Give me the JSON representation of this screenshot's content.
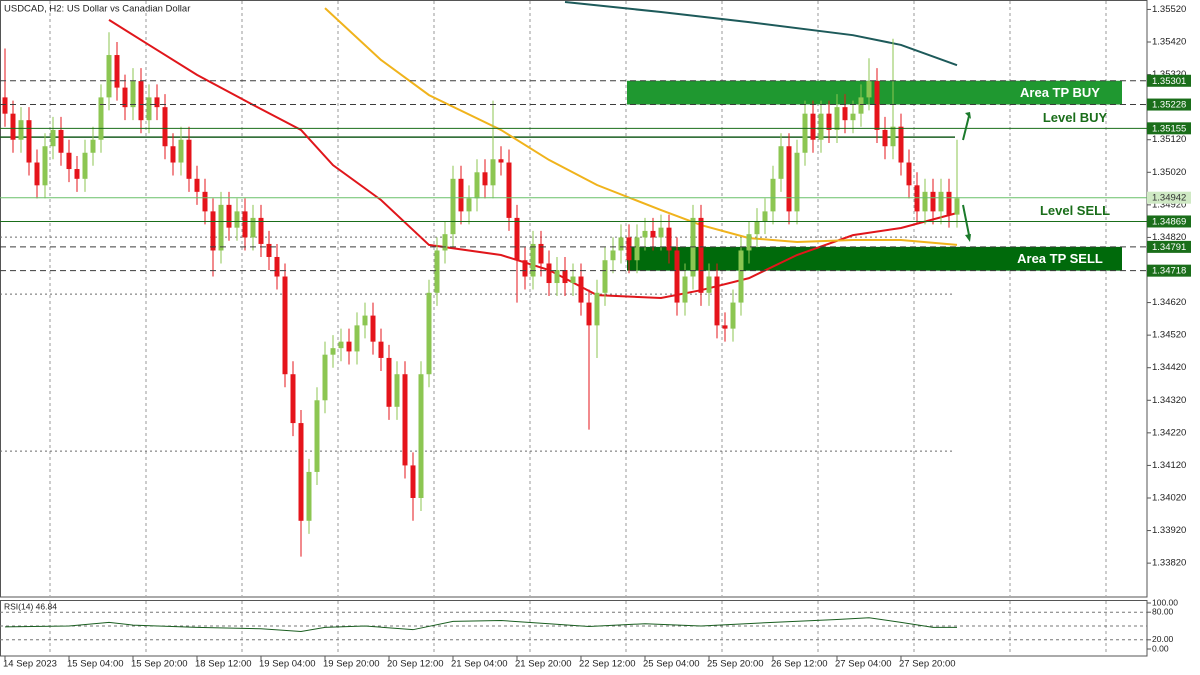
{
  "chart_data": [
    {
      "type": "candlestick",
      "title": "USDCAD, H2: US Dollar vs Canadian Dollar",
      "categories": [
        "14 Sep 2023",
        null,
        null,
        null,
        null,
        null,
        null,
        null,
        "15 Sep 04:00",
        null,
        null,
        null,
        null,
        null,
        null,
        null,
        "15 Sep 20:00",
        null,
        null,
        null,
        null,
        null,
        null,
        null,
        "18 Sep 12:00",
        null,
        null,
        null,
        null,
        null,
        null,
        null,
        "19 Sep 04:00",
        null,
        null,
        null,
        null,
        null,
        null,
        null,
        "19 Sep 20:00",
        null,
        null,
        null,
        null,
        null,
        null,
        null,
        "20 Sep 12:00",
        null,
        null,
        null,
        null,
        null,
        null,
        null,
        "21 Sep 04:00",
        null,
        null,
        null,
        null,
        null,
        null,
        null,
        "21 Sep 20:00",
        null,
        null,
        null,
        null,
        null,
        null,
        null,
        "22 Sep 12:00",
        null,
        null,
        null,
        null,
        null,
        null,
        null,
        "25 Sep 04:00",
        null,
        null,
        null,
        null,
        null,
        null,
        null,
        "25 Sep 20:00",
        null,
        null,
        null,
        null,
        null,
        null,
        null,
        "26 Sep 12:00",
        null,
        null,
        null,
        null,
        null,
        null,
        null,
        "27 Sep 04:00",
        null,
        null,
        null,
        null,
        null,
        null,
        null,
        "27 Sep 20:00",
        null,
        null,
        null,
        null,
        null,
        null,
        null
      ],
      "open": [
        1.3525,
        1.352,
        1.3512,
        1.3518,
        1.3505,
        1.3498,
        1.351,
        1.3515,
        1.3508,
        1.3503,
        1.35,
        1.3508,
        1.3512,
        1.3525,
        1.3538,
        1.3528,
        1.3522,
        1.353,
        1.3518,
        1.3525,
        1.3522,
        1.351,
        1.3505,
        1.3512,
        1.35,
        1.3496,
        1.349,
        1.3478,
        1.3492,
        1.3485,
        1.349,
        1.3482,
        1.3488,
        1.348,
        1.3476,
        1.347,
        1.344,
        1.3425,
        1.3395,
        1.341,
        1.3432,
        1.3446,
        1.3448,
        1.345,
        1.3447,
        1.3455,
        1.3458,
        1.345,
        1.3445,
        1.343,
        1.344,
        1.3412,
        1.3402,
        1.344,
        1.3465,
        1.3478,
        1.3483,
        1.35,
        1.349,
        1.3494,
        1.3502,
        1.3498,
        1.3506,
        1.3505,
        1.3488,
        1.3475,
        1.347,
        1.348,
        1.3474,
        1.3468,
        1.3472,
        1.3468,
        1.347,
        1.3462,
        1.3455,
        1.3465,
        1.3475,
        1.3478,
        1.3482,
        1.3475,
        1.3482,
        1.3484,
        1.3482,
        1.3485,
        1.3478,
        1.3462,
        1.347,
        1.3488,
        1.3465,
        1.347,
        1.3455,
        1.3454,
        1.3462,
        1.3478,
        1.3483,
        1.3487,
        1.349,
        1.35,
        1.351,
        1.349,
        1.3508,
        1.352,
        1.3512,
        1.352,
        1.3515,
        1.3522,
        1.3518,
        1.352,
        1.3525,
        1.353,
        1.3515,
        1.351,
        1.3516,
        1.3505,
        1.3498,
        1.349,
        1.3496,
        1.349,
        1.3496,
        1.3489
      ],
      "high": [
        1.354,
        1.3524,
        1.3522,
        1.3522,
        1.3509,
        1.3514,
        1.3519,
        1.3519,
        1.3512,
        1.3507,
        1.3512,
        1.3516,
        1.3529,
        1.3545,
        1.3542,
        1.3532,
        1.3534,
        1.3534,
        1.3529,
        1.3529,
        1.3526,
        1.3514,
        1.3516,
        1.3516,
        1.3504,
        1.35,
        1.3494,
        1.3496,
        1.3496,
        1.3494,
        1.3494,
        1.3492,
        1.3492,
        1.3484,
        1.348,
        1.3474,
        1.3444,
        1.3429,
        1.3414,
        1.3436,
        1.345,
        1.3452,
        1.3454,
        1.3454,
        1.3459,
        1.3462,
        1.3462,
        1.3454,
        1.3449,
        1.3444,
        1.3444,
        1.3416,
        1.3444,
        1.3469,
        1.3482,
        1.3487,
        1.3504,
        1.3504,
        1.3498,
        1.3506,
        1.3506,
        1.3524,
        1.351,
        1.3509,
        1.3492,
        1.3479,
        1.3484,
        1.3484,
        1.3478,
        1.3476,
        1.3476,
        1.3474,
        1.3474,
        1.3466,
        1.3469,
        1.3479,
        1.3482,
        1.3486,
        1.3486,
        1.3486,
        1.3488,
        1.3488,
        1.3489,
        1.3489,
        1.3482,
        1.3474,
        1.3492,
        1.3492,
        1.3474,
        1.3474,
        1.3459,
        1.3466,
        1.3482,
        1.3487,
        1.3491,
        1.3494,
        1.3504,
        1.3514,
        1.3514,
        1.3512,
        1.3524,
        1.3524,
        1.3524,
        1.3524,
        1.3526,
        1.3526,
        1.3524,
        1.3529,
        1.3537,
        1.3534,
        1.3519,
        1.3543,
        1.352,
        1.3509,
        1.3502,
        1.35,
        1.35,
        1.35,
        1.35,
        1.3512
      ],
      "low": [
        1.3516,
        1.3508,
        1.3508,
        1.3501,
        1.3494,
        1.3494,
        1.3506,
        1.3504,
        1.3499,
        1.3496,
        1.3496,
        1.3504,
        1.3508,
        1.3521,
        1.3524,
        1.3518,
        1.3518,
        1.3514,
        1.3514,
        1.3518,
        1.3506,
        1.3501,
        1.3501,
        1.3496,
        1.3492,
        1.3486,
        1.347,
        1.3474,
        1.3481,
        1.3481,
        1.3478,
        1.3478,
        1.3476,
        1.3472,
        1.3466,
        1.3436,
        1.3421,
        1.3384,
        1.3391,
        1.3406,
        1.3428,
        1.3442,
        1.3444,
        1.3443,
        1.3443,
        1.3451,
        1.3446,
        1.3441,
        1.3426,
        1.3426,
        1.3408,
        1.3395,
        1.3398,
        1.3436,
        1.3461,
        1.3474,
        1.3479,
        1.3486,
        1.3486,
        1.349,
        1.3494,
        1.3494,
        1.3501,
        1.3484,
        1.3462,
        1.3466,
        1.3466,
        1.347,
        1.3464,
        1.3464,
        1.3464,
        1.3464,
        1.3458,
        1.3423,
        1.3445,
        1.3461,
        1.3471,
        1.3474,
        1.3471,
        1.3471,
        1.3478,
        1.3478,
        1.3478,
        1.3474,
        1.3458,
        1.3458,
        1.3466,
        1.3461,
        1.3461,
        1.3451,
        1.345,
        1.345,
        1.3458,
        1.3474,
        1.3479,
        1.3483,
        1.3486,
        1.3496,
        1.3486,
        1.3486,
        1.3504,
        1.3508,
        1.3508,
        1.3511,
        1.3511,
        1.3514,
        1.3514,
        1.3516,
        1.3521,
        1.3511,
        1.3506,
        1.3506,
        1.3501,
        1.3494,
        1.3486,
        1.3486,
        1.3486,
        1.3486,
        1.3485,
        1.3485
      ],
      "close": [
        1.352,
        1.3512,
        1.3518,
        1.3505,
        1.3498,
        1.351,
        1.3515,
        1.3508,
        1.3503,
        1.35,
        1.3508,
        1.3512,
        1.3525,
        1.3538,
        1.3528,
        1.3522,
        1.353,
        1.3518,
        1.3525,
        1.3522,
        1.351,
        1.3505,
        1.3512,
        1.35,
        1.3496,
        1.349,
        1.3478,
        1.3492,
        1.3485,
        1.349,
        1.3482,
        1.3488,
        1.348,
        1.3476,
        1.347,
        1.344,
        1.3425,
        1.3395,
        1.341,
        1.3432,
        1.3446,
        1.3448,
        1.345,
        1.3447,
        1.3455,
        1.3458,
        1.345,
        1.3445,
        1.343,
        1.344,
        1.3412,
        1.3402,
        1.344,
        1.3465,
        1.3478,
        1.3483,
        1.35,
        1.349,
        1.3494,
        1.3502,
        1.3498,
        1.3506,
        1.3505,
        1.3488,
        1.3475,
        1.347,
        1.348,
        1.3474,
        1.3468,
        1.3472,
        1.3468,
        1.347,
        1.3462,
        1.3455,
        1.3465,
        1.3475,
        1.3478,
        1.3482,
        1.3475,
        1.3482,
        1.3484,
        1.3482,
        1.3485,
        1.3478,
        1.3462,
        1.347,
        1.3488,
        1.3465,
        1.347,
        1.3455,
        1.3454,
        1.3462,
        1.3478,
        1.3483,
        1.3487,
        1.349,
        1.35,
        1.351,
        1.349,
        1.3508,
        1.352,
        1.3512,
        1.352,
        1.3515,
        1.3522,
        1.3518,
        1.352,
        1.3525,
        1.353,
        1.3515,
        1.351,
        1.3516,
        1.3505,
        1.3498,
        1.349,
        1.3496,
        1.349,
        1.3496,
        1.3489,
        1.3494
      ],
      "up_color": "#8cc652",
      "down_color": "#e5141b",
      "ylim": [
        1.33716,
        1.35549
      ],
      "yticks": [
        {
          "value": 1.3382,
          "label": "1.33820"
        },
        {
          "value": 1.3392,
          "label": "1.33920"
        },
        {
          "value": 1.3402,
          "label": "1.34020"
        },
        {
          "value": 1.3412,
          "label": "1.34120"
        },
        {
          "value": 1.3422,
          "label": "1.34220"
        },
        {
          "value": 1.3432,
          "label": "1.34320"
        },
        {
          "value": 1.3442,
          "label": "1.34420"
        },
        {
          "value": 1.3452,
          "label": "1.34520"
        },
        {
          "value": 1.3462,
          "label": "1.34620"
        },
        {
          "value": 1.3472,
          "label": "1.34720"
        },
        {
          "value": 1.3482,
          "label": "1.34820"
        },
        {
          "value": 1.3492,
          "label": "1.34920"
        },
        {
          "value": 1.3502,
          "label": "1.35020"
        },
        {
          "value": 1.3512,
          "label": "1.35120"
        },
        {
          "value": 1.3522,
          "label": "1.35220"
        },
        {
          "value": 1.3532,
          "label": "1.35320"
        },
        {
          "value": 1.3542,
          "label": "1.35420"
        },
        {
          "value": 1.3552,
          "label": "1.35520"
        }
      ],
      "grid": true,
      "series": [
        {
          "color": "#e0161b",
          "x": [
            13,
            18,
            24,
            31,
            37,
            41,
            47,
            53,
            62,
            68,
            74,
            82,
            87,
            93,
            99,
            106,
            112,
            119
          ],
          "values": [
            1.35488,
            1.35411,
            1.35319,
            1.35227,
            1.3515,
            1.35042,
            1.34935,
            1.34797,
            1.34766,
            1.3472,
            1.34643,
            1.34634,
            1.34658,
            1.34695,
            1.34766,
            1.34827,
            1.34849,
            1.34895
          ]
        },
        {
          "color": "#f0b31c",
          "x": [
            40,
            47,
            53,
            62,
            68,
            74,
            82,
            87,
            93,
            99,
            106,
            112,
            119
          ],
          "values": [
            1.35524,
            1.35365,
            1.35257,
            1.3515,
            1.35058,
            1.34981,
            1.34904,
            1.34858,
            1.34818,
            1.34806,
            1.34812,
            1.34812,
            1.34797
          ]
        },
        {
          "color": "#1d5a5a",
          "x": [
            70,
            82,
            93,
            106,
            112,
            119
          ],
          "values": [
            1.35543,
            1.35512,
            1.35481,
            1.35441,
            1.35411,
            1.35349
          ]
        }
      ],
      "areas": [
        {
          "label": "Area TP BUY",
          "top": 1.35301,
          "bottom": 1.35228,
          "color": "#1f9830"
        },
        {
          "label": "Area TP SELL",
          "top": 1.34791,
          "bottom": 1.34718,
          "color": "#006a0b"
        }
      ],
      "levels": [
        {
          "value": 1.35301,
          "color": "#3d3d3d",
          "style": "dashed",
          "box": "#1a6e1a"
        },
        {
          "value": 1.35228,
          "color": "#3d3d3d",
          "style": "dashed",
          "box": "#1a6e1a"
        },
        {
          "value": 1.35155,
          "color": "#1a6e1a",
          "style": "solid",
          "box": "#1a6e1a",
          "label": "Level BUY"
        },
        {
          "value": 1.34942,
          "color": "#69c069",
          "style": "solid",
          "box": "#cfe9c4"
        },
        {
          "value": 1.34869,
          "color": "#1a6e1a",
          "style": "solid",
          "box": "#1a6e1a",
          "label": "Level SELL"
        },
        {
          "value": 1.34791,
          "color": "#3d3d3d",
          "style": "dashed",
          "box": "#1a6e1a"
        },
        {
          "value": 1.34718,
          "color": "#3d3d3d",
          "style": "dashed",
          "box": "#1a6e1a"
        }
      ],
      "hlines": [
        {
          "value": 1.35128,
          "color": "#1a5e20",
          "style": "solid"
        },
        {
          "value": 1.34821,
          "color": "#6a6a6a",
          "style": "dashed"
        },
        {
          "value": 1.34646,
          "color": "#6a6a6a",
          "style": "dashed"
        },
        {
          "value": 1.34164,
          "color": "#6a6a6a",
          "style": "dashed"
        }
      ]
    },
    {
      "type": "line",
      "title": "RSI(14) 46.84",
      "x": [
        0,
        8,
        13,
        16,
        24,
        32,
        37,
        40,
        45,
        51,
        56,
        62,
        68,
        73,
        80,
        87,
        96,
        104,
        108,
        112,
        116,
        119
      ],
      "values": [
        48,
        50,
        58,
        52,
        47,
        44,
        38,
        47,
        50,
        42,
        60,
        62,
        55,
        49,
        55,
        50,
        58,
        64,
        68,
        58,
        47,
        47
      ],
      "color": "#1a5e20",
      "ylim": [
        0,
        100
      ],
      "yticks": [
        {
          "value": 100,
          "label": "100.00"
        },
        {
          "value": 80,
          "label": "80.00"
        },
        {
          "value": 20,
          "label": "20.00"
        },
        {
          "value": 0,
          "label": "0.00"
        }
      ],
      "hlines": [
        80,
        50,
        20
      ]
    }
  ]
}
